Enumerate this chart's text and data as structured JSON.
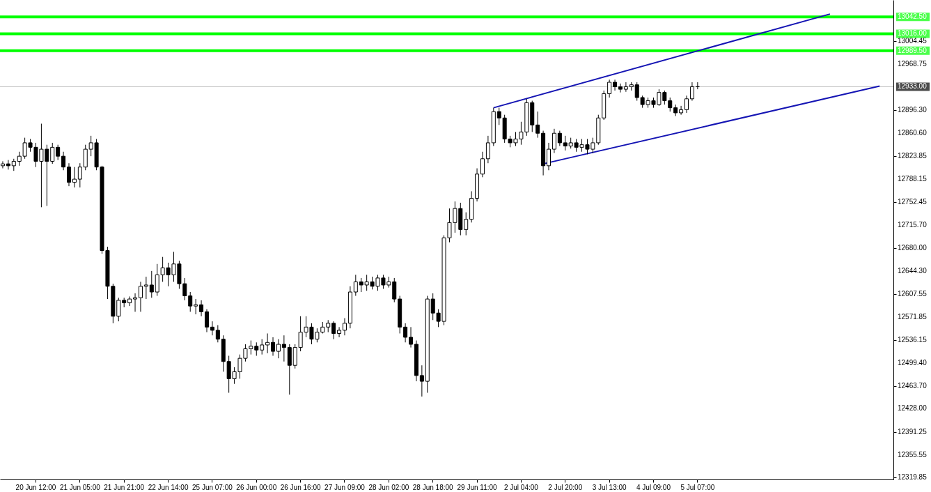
{
  "chart_data": {
    "type": "candlestick",
    "color": "#000000",
    "grid": false,
    "categories": [
      null,
      null,
      null,
      null,
      null,
      null,
      "20 Jun 12:00",
      null,
      null,
      null,
      null,
      null,
      null,
      null,
      "21 Jun 05:00",
      null,
      null,
      null,
      null,
      null,
      null,
      null,
      "21 Jun 21:00",
      null,
      null,
      null,
      null,
      null,
      null,
      null,
      "22 Jun 14:00",
      null,
      null,
      null,
      null,
      null,
      null,
      null,
      "25 Jun 07:00",
      null,
      null,
      null,
      null,
      null,
      null,
      null,
      "26 Jun 00:00",
      null,
      null,
      null,
      null,
      null,
      null,
      null,
      "26 Jun 16:00",
      null,
      null,
      null,
      null,
      null,
      null,
      null,
      "27 Jun 09:00",
      null,
      null,
      null,
      null,
      null,
      null,
      null,
      "28 Jun 02:00",
      null,
      null,
      null,
      null,
      null,
      null,
      null,
      "28 Jun 18:00",
      null,
      null,
      null,
      null,
      null,
      null,
      null,
      "29 Jun 11:00",
      null,
      null,
      null,
      null,
      null,
      null,
      null,
      "2 Jul 04:00",
      null,
      null,
      null,
      null,
      null,
      null,
      null,
      "2 Jul 20:00",
      null,
      null,
      null,
      null,
      null,
      null,
      null,
      "3 Jul 13:00",
      null,
      null,
      null,
      null,
      null,
      null,
      null,
      "4 Jul 09:00",
      null,
      null,
      null,
      null,
      null,
      null,
      null,
      "5 Jul 07:00",
      null,
      null,
      null,
      null,
      null,
      null,
      null,
      null,
      null,
      null,
      null,
      null,
      null,
      null,
      null,
      null,
      null,
      null,
      null,
      null,
      null,
      null,
      null,
      null,
      null,
      null,
      null,
      null,
      null,
      null,
      null,
      null,
      null,
      null,
      null
    ],
    "ohlc": [
      [
        12809,
        12816,
        12805,
        12812
      ],
      [
        12812,
        12818,
        12803,
        12809
      ],
      [
        12809,
        12820,
        12801,
        12816
      ],
      [
        12816,
        12831,
        12809,
        12824
      ],
      [
        12824,
        12853,
        12820,
        12845
      ],
      [
        12845,
        12851,
        12831,
        12838
      ],
      [
        12838,
        12845,
        12807,
        12816
      ],
      [
        12816,
        12875,
        12744,
        12835
      ],
      [
        12835,
        12842,
        12746,
        12816
      ],
      [
        12816,
        12845,
        12812,
        12838
      ],
      [
        12838,
        12842,
        12818,
        12824
      ],
      [
        12824,
        12831,
        12802,
        12807
      ],
      [
        12807,
        12813,
        12777,
        12783
      ],
      [
        12783,
        12807,
        12775,
        12788
      ],
      [
        12788,
        12813,
        12775,
        12807
      ],
      [
        12807,
        12842,
        12802,
        12835
      ],
      [
        12835,
        12856,
        12824,
        12845
      ],
      [
        12845,
        12851,
        12802,
        12807
      ],
      [
        12807,
        12809,
        12671,
        12676
      ],
      [
        12676,
        12682,
        12600,
        12620
      ],
      [
        12620,
        12624,
        12562,
        12573
      ],
      [
        12573,
        12602,
        12565,
        12598
      ],
      [
        12598,
        12602,
        12587,
        12594
      ],
      [
        12594,
        12604,
        12589,
        12600
      ],
      [
        12600,
        12609,
        12580,
        12602
      ],
      [
        12602,
        12627,
        12580,
        12620
      ],
      [
        12620,
        12635,
        12600,
        12622
      ],
      [
        12622,
        12644,
        12602,
        12611
      ],
      [
        12611,
        12655,
        12605,
        12638
      ],
      [
        12638,
        12666,
        12627,
        12649
      ],
      [
        12649,
        12657,
        12620,
        12638
      ],
      [
        12638,
        12674,
        12627,
        12655
      ],
      [
        12655,
        12660,
        12616,
        12624
      ],
      [
        12624,
        12633,
        12598,
        12605
      ],
      [
        12605,
        12611,
        12580,
        12589
      ],
      [
        12589,
        12600,
        12576,
        12591
      ],
      [
        12591,
        12598,
        12573,
        12580
      ],
      [
        12580,
        12584,
        12548,
        12556
      ],
      [
        12556,
        12565,
        12543,
        12551
      ],
      [
        12551,
        12559,
        12532,
        12537
      ],
      [
        12537,
        12543,
        12486,
        12502
      ],
      [
        12502,
        12511,
        12453,
        12475
      ],
      [
        12475,
        12493,
        12467,
        12486
      ],
      [
        12486,
        12513,
        12475,
        12507
      ],
      [
        12507,
        12529,
        12502,
        12522
      ],
      [
        12522,
        12535,
        12513,
        12526
      ],
      [
        12526,
        12532,
        12511,
        12520
      ],
      [
        12520,
        12537,
        12513,
        12528
      ],
      [
        12528,
        12546,
        12515,
        12532
      ],
      [
        12532,
        12540,
        12511,
        12518
      ],
      [
        12518,
        12537,
        12507,
        12529
      ],
      [
        12529,
        12543,
        12502,
        12524
      ],
      [
        12524,
        12529,
        12450,
        12496
      ],
      [
        12496,
        12529,
        12491,
        12524
      ],
      [
        12524,
        12573,
        12518,
        12548
      ],
      [
        12548,
        12573,
        12540,
        12556
      ],
      [
        12556,
        12562,
        12529,
        12537
      ],
      [
        12537,
        12554,
        12532,
        12548
      ],
      [
        12548,
        12564,
        12546,
        12556
      ],
      [
        12556,
        12567,
        12548,
        12562
      ],
      [
        12562,
        12565,
        12537,
        12546
      ],
      [
        12546,
        12556,
        12540,
        12551
      ],
      [
        12551,
        12570,
        12543,
        12562
      ],
      [
        12562,
        12620,
        12554,
        12611
      ],
      [
        12611,
        12638,
        12605,
        12627
      ],
      [
        12627,
        12633,
        12611,
        12622
      ],
      [
        12622,
        12638,
        12613,
        12627
      ],
      [
        12627,
        12635,
        12615,
        12620
      ],
      [
        12620,
        12638,
        12613,
        12633
      ],
      [
        12633,
        12638,
        12616,
        12622
      ],
      [
        12622,
        12635,
        12618,
        12627
      ],
      [
        12627,
        12633,
        12595,
        12600
      ],
      [
        12600,
        12605,
        12546,
        12556
      ],
      [
        12556,
        12562,
        12532,
        12540
      ],
      [
        12540,
        12556,
        12524,
        12529
      ],
      [
        12529,
        12535,
        12471,
        12480
      ],
      [
        12480,
        12496,
        12447,
        12471
      ],
      [
        12471,
        12605,
        12453,
        12600
      ],
      [
        12600,
        12609,
        12567,
        12578
      ],
      [
        12578,
        12584,
        12556,
        12565
      ],
      [
        12565,
        12700,
        12559,
        12696
      ],
      [
        12696,
        12742,
        12689,
        12720
      ],
      [
        12720,
        12753,
        12704,
        12742
      ],
      [
        12742,
        12751,
        12700,
        12709
      ],
      [
        12709,
        12736,
        12700,
        12725
      ],
      [
        12725,
        12769,
        12720,
        12758
      ],
      [
        12758,
        12805,
        12753,
        12796
      ],
      [
        12796,
        12831,
        12791,
        12820
      ],
      [
        12820,
        12856,
        12813,
        12845
      ],
      [
        12845,
        12900,
        12840,
        12894
      ],
      [
        12894,
        12900,
        12873,
        12884
      ],
      [
        12884,
        12889,
        12845,
        12851
      ],
      [
        12851,
        12856,
        12838,
        12845
      ],
      [
        12845,
        12862,
        12840,
        12851
      ],
      [
        12851,
        12878,
        12842,
        12862
      ],
      [
        12862,
        12914,
        12856,
        12908
      ],
      [
        12908,
        12911,
        12862,
        12873
      ],
      [
        12873,
        12894,
        12853,
        12860
      ],
      [
        12860,
        12864,
        12794,
        12809
      ],
      [
        12809,
        12845,
        12802,
        12835
      ],
      [
        12835,
        12867,
        12829,
        12860
      ],
      [
        12860,
        12864,
        12840,
        12845
      ],
      [
        12845,
        12856,
        12833,
        12840
      ],
      [
        12840,
        12853,
        12836,
        12845
      ],
      [
        12845,
        12851,
        12831,
        12838
      ],
      [
        12838,
        12851,
        12831,
        12842
      ],
      [
        12842,
        12851,
        12827,
        12835
      ],
      [
        12835,
        12853,
        12829,
        12845
      ],
      [
        12845,
        12889,
        12842,
        12884
      ],
      [
        12884,
        12927,
        12881,
        12922
      ],
      [
        12922,
        12944,
        12916,
        12940
      ],
      [
        12940,
        12944,
        12927,
        12933
      ],
      [
        12933,
        12938,
        12924,
        12929
      ],
      [
        12929,
        12940,
        12925,
        12933
      ],
      [
        12933,
        12940,
        12927,
        12936
      ],
      [
        12936,
        12940,
        12911,
        12916
      ],
      [
        12916,
        12919,
        12900,
        12905
      ],
      [
        12905,
        12916,
        12900,
        12911
      ],
      [
        12911,
        12916,
        12900,
        12905
      ],
      [
        12905,
        12929,
        12903,
        12924
      ],
      [
        12924,
        12927,
        12905,
        12911
      ],
      [
        12911,
        12916,
        12894,
        12900
      ],
      [
        12900,
        12905,
        12887,
        12892
      ],
      [
        12892,
        12903,
        12889,
        12897
      ],
      [
        12897,
        12919,
        12892,
        12914
      ],
      [
        12914,
        12940,
        12911,
        12933
      ],
      [
        12933,
        12940,
        12929,
        12933
      ],
      null,
      null,
      null,
      null,
      null,
      null,
      null,
      null,
      null,
      null,
      null,
      null,
      null,
      null,
      null,
      null,
      null,
      null,
      null,
      null,
      null,
      null,
      null,
      null,
      null,
      null,
      null,
      null,
      null,
      null,
      null,
      null,
      null,
      null,
      null
    ],
    "series": [
      {
        "type": "line",
        "color": "#1515b4",
        "values": [
          null,
          null,
          null,
          null,
          null,
          null,
          null,
          null,
          null,
          null,
          null,
          null,
          null,
          null,
          null,
          null,
          null,
          null,
          null,
          null,
          null,
          null,
          null,
          null,
          null,
          null,
          null,
          null,
          null,
          null,
          null,
          null,
          null,
          null,
          null,
          null,
          null,
          null,
          null,
          null,
          null,
          null,
          null,
          null,
          null,
          null,
          null,
          null,
          null,
          null,
          null,
          null,
          null,
          null,
          null,
          null,
          null,
          null,
          null,
          null,
          null,
          null,
          null,
          null,
          null,
          null,
          null,
          null,
          null,
          null,
          null,
          null,
          null,
          null,
          null,
          null,
          null,
          null,
          null,
          null,
          null,
          null,
          null,
          null,
          null,
          null,
          null,
          null,
          null,
          12900,
          null,
          null,
          null,
          null,
          null,
          null,
          null,
          null,
          null,
          null,
          null,
          null,
          null,
          null,
          null,
          null,
          null,
          null,
          null,
          null,
          null,
          null,
          null,
          null,
          null,
          null,
          null,
          null,
          null,
          null,
          null,
          null,
          null,
          null,
          null,
          null,
          null,
          null,
          null,
          null,
          null,
          null,
          null,
          null,
          null,
          null,
          null,
          null,
          null,
          null,
          null,
          null,
          null,
          null,
          null,
          null,
          null,
          null,
          null,
          null,
          13047,
          null,
          null,
          null,
          null,
          null,
          null,
          null,
          null,
          null,
          null,
          null
        ]
      },
      {
        "type": "line",
        "color": "#1515b4",
        "values": [
          null,
          null,
          null,
          null,
          null,
          null,
          null,
          null,
          null,
          null,
          null,
          null,
          null,
          null,
          null,
          null,
          null,
          null,
          null,
          null,
          null,
          null,
          null,
          null,
          null,
          null,
          null,
          null,
          null,
          null,
          null,
          null,
          null,
          null,
          null,
          null,
          null,
          null,
          null,
          null,
          null,
          null,
          null,
          null,
          null,
          null,
          null,
          null,
          null,
          null,
          null,
          null,
          null,
          null,
          null,
          null,
          null,
          null,
          null,
          null,
          null,
          null,
          null,
          null,
          null,
          null,
          null,
          null,
          null,
          null,
          null,
          null,
          null,
          null,
          null,
          null,
          null,
          null,
          null,
          null,
          null,
          null,
          null,
          null,
          null,
          null,
          null,
          null,
          null,
          null,
          null,
          null,
          null,
          null,
          null,
          null,
          null,
          null,
          12812,
          null,
          null,
          null,
          null,
          null,
          null,
          null,
          null,
          null,
          null,
          null,
          null,
          null,
          null,
          null,
          null,
          null,
          null,
          null,
          null,
          null,
          null,
          null,
          null,
          null,
          null,
          null,
          null,
          null,
          null,
          null,
          null,
          null,
          null,
          null,
          null,
          null,
          null,
          null,
          null,
          null,
          null,
          null,
          null,
          null,
          null,
          null,
          null,
          null,
          null,
          null,
          null,
          null,
          null,
          null,
          null,
          null,
          null,
          null,
          null,
          12934,
          null,
          null
        ]
      }
    ],
    "ref_lines": [
      {
        "axis": "y",
        "value": 13042.5,
        "label": "13042.50",
        "color": "#00ff00"
      },
      {
        "axis": "y",
        "value": 13016,
        "label": "13016.00",
        "color": "#00ff00"
      },
      {
        "axis": "y",
        "value": 12989.5,
        "label": "12989.50",
        "color": "#00ff00"
      },
      {
        "axis": "y",
        "value": 12933,
        "label": "12933.00",
        "color": "#c0c0c0"
      }
    ],
    "ylim": [
      12317,
      13069
    ],
    "yticks": [
      {
        "value": 12319.85,
        "label": "12319.85"
      },
      {
        "value": 12355.55,
        "label": "12355.55"
      },
      {
        "value": 12391.25,
        "label": "12391.25"
      },
      {
        "value": 12428,
        "label": "12428.00"
      },
      {
        "value": 12463.7,
        "label": "12463.70"
      },
      {
        "value": 12499.4,
        "label": "12499.40"
      },
      {
        "value": 12536.15,
        "label": "12536.15"
      },
      {
        "value": 12571.85,
        "label": "12571.85"
      },
      {
        "value": 12607.55,
        "label": "12607.55"
      },
      {
        "value": 12644.3,
        "label": "12644.30"
      },
      {
        "value": 12680,
        "label": "12680.00"
      },
      {
        "value": 12715.7,
        "label": "12715.70"
      },
      {
        "value": 12752.45,
        "label": "12752.45"
      },
      {
        "value": 12788.15,
        "label": "12788.15"
      },
      {
        "value": 12823.85,
        "label": "12823.85"
      },
      {
        "value": 12860.6,
        "label": "12860.60"
      },
      {
        "value": 12896.3,
        "label": "12896.30"
      },
      {
        "value": 12968.75,
        "label": "12968.75"
      },
      {
        "value": 13004.45,
        "label": "13004.45"
      }
    ]
  }
}
